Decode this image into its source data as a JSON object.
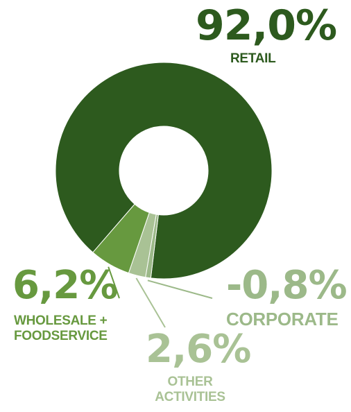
{
  "chart_data": {
    "type": "pie",
    "style": "donut",
    "series": [
      {
        "name": "RETAIL",
        "value": 92.0,
        "label": "92,0%",
        "color": "#2d5a1e"
      },
      {
        "name": "CORPORATE",
        "value": -0.8,
        "label": "-0,8%",
        "color": "#9cb989"
      },
      {
        "name": "OTHER ACTIVITIES",
        "value": 2.6,
        "label": "2,6%",
        "color": "#a9c295"
      },
      {
        "name": "WHOLESALE + FOODSERVICE",
        "value": 6.2,
        "label": "6,2%",
        "color": "#67993f"
      }
    ],
    "labels": {
      "retail": {
        "pct": "92,0%",
        "name": "RETAIL"
      },
      "wholesale": {
        "pct": "6,2%",
        "name_line1": "WHOLESALE +",
        "name_line2": "FOODSERVICE"
      },
      "corporate": {
        "pct": "-0,8%",
        "name": "CORPORATE"
      },
      "other": {
        "pct": "2,6%",
        "name_line1": "OTHER",
        "name_line2": "ACTIVITIES"
      }
    }
  }
}
